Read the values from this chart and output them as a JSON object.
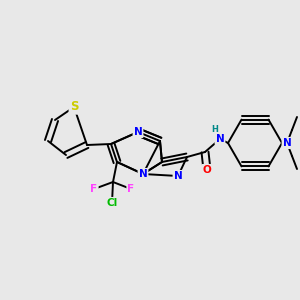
{
  "bg_color": "#e8e8e8",
  "bond_color": "#000000",
  "bond_width": 1.4,
  "atom_colors": {
    "S": "#cccc00",
    "N": "#0000ff",
    "O": "#ff0000",
    "F": "#ff44ff",
    "Cl": "#00bb00",
    "H": "#008888",
    "C": "#000000"
  },
  "font_size": 7.5
}
